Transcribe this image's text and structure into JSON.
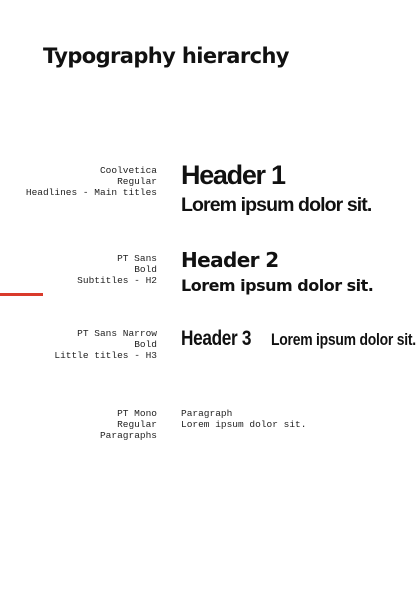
{
  "title": "Typography hierarchy",
  "accent_color": "#d93a2b",
  "rows": [
    {
      "font": "Coolvetica",
      "weight": "Regular",
      "usage": "Headlines - Main titles",
      "heading": "Header 1",
      "sample": "Lorem ipsum dolor sit."
    },
    {
      "font": "PT Sans",
      "weight": "Bold",
      "usage": "Subtitles - H2",
      "heading": "Header 2",
      "sample": "Lorem ipsum dolor sit."
    },
    {
      "font": "PT Sans Narrow",
      "weight": "Bold",
      "usage": "Little titles - H3",
      "heading": "Header 3",
      "sample": "Lorem ipsum dolor sit."
    },
    {
      "font": "PT Mono",
      "weight": "Regular",
      "usage": "Paragraphs",
      "heading": "Paragraph",
      "sample": "Lorem ipsum dolor sit."
    }
  ]
}
